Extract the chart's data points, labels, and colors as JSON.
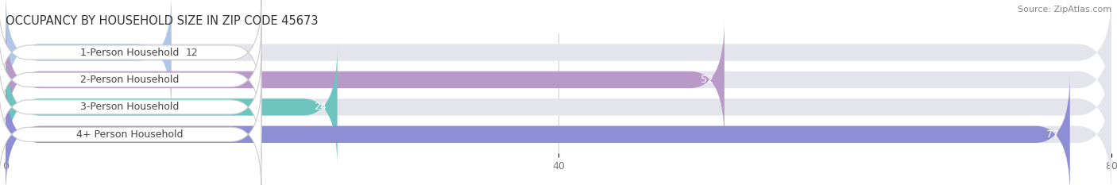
{
  "title": "OCCUPANCY BY HOUSEHOLD SIZE IN ZIP CODE 45673",
  "source": "Source: ZipAtlas.com",
  "categories": [
    "1-Person Household",
    "2-Person Household",
    "3-Person Household",
    "4+ Person Household"
  ],
  "values": [
    12,
    52,
    24,
    77
  ],
  "bar_colors": [
    "#aec6e8",
    "#b899c8",
    "#6ec4bf",
    "#8e8ed4"
  ],
  "bg_bar_color": "#e4e4ec",
  "xlim": [
    0,
    80
  ],
  "xticks": [
    0,
    40,
    80
  ],
  "background_color": "#ffffff",
  "bar_height": 0.62,
  "title_fontsize": 10.5,
  "source_fontsize": 8,
  "tick_fontsize": 9,
  "label_fontsize": 9,
  "inside_threshold": 15
}
